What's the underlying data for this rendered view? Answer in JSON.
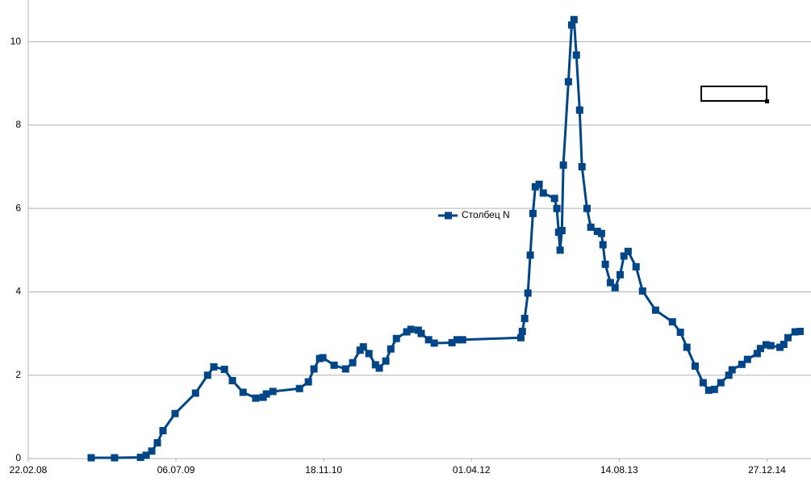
{
  "chart_data": {
    "type": "line",
    "x": [
      "2008-09-22",
      "2008-12-10",
      "2009-03-08",
      "2009-03-27",
      "2009-04-15",
      "2009-05-04",
      "2009-05-23",
      "2009-07-03",
      "2009-09-10",
      "2009-10-21",
      "2009-11-11",
      "2009-12-17",
      "2010-01-13",
      "2010-02-18",
      "2010-04-02",
      "2010-04-27",
      "2010-05-08",
      "2010-05-30",
      "2010-08-28",
      "2010-09-27",
      "2010-10-16",
      "2010-11-04",
      "2010-11-15",
      "2010-12-23",
      "2011-01-31",
      "2011-02-24",
      "2011-03-21",
      "2011-04-01",
      "2011-04-20",
      "2011-05-12",
      "2011-05-25",
      "2011-06-16",
      "2011-07-03",
      "2011-07-22",
      "2011-08-26",
      "2011-09-09",
      "2011-10-04",
      "2011-10-14",
      "2011-11-08",
      "2011-11-27",
      "2012-01-26",
      "2012-02-12",
      "2012-03-02",
      "2012-09-15",
      "2012-09-20",
      "2012-09-28",
      "2012-10-09",
      "2012-10-17",
      "2012-10-26",
      "2012-11-03",
      "2012-11-16",
      "2012-11-30",
      "2013-01-07",
      "2013-01-15",
      "2013-01-21",
      "2013-01-26",
      "2013-02-01",
      "2013-02-06",
      "2013-02-23",
      "2013-03-06",
      "2013-03-14",
      "2013-03-22",
      "2013-04-02",
      "2013-04-10",
      "2013-04-27",
      "2013-05-10",
      "2013-06-01",
      "2013-06-15",
      "2013-06-20",
      "2013-06-28",
      "2013-07-15",
      "2013-07-31",
      "2013-08-17",
      "2013-08-30",
      "2013-09-13",
      "2013-10-10",
      "2013-11-01",
      "2013-12-15",
      "2014-02-10",
      "2014-03-09",
      "2014-03-31",
      "2014-04-28",
      "2014-05-25",
      "2014-06-13",
      "2014-07-02",
      "2014-07-24",
      "2014-08-20",
      "2014-08-31",
      "2014-10-03",
      "2014-10-22",
      "2014-11-24",
      "2014-12-05",
      "2014-12-24",
      "2015-01-09",
      "2015-02-09",
      "2015-02-22",
      "2015-03-08",
      "2015-04-01",
      "2015-04-18"
    ],
    "series": [
      {
        "name": "Столбец N",
        "color": "#004586",
        "values": [
          0.02,
          0.02,
          0.03,
          0.08,
          0.18,
          0.38,
          0.67,
          1.08,
          1.57,
          2.0,
          2.2,
          2.14,
          1.87,
          1.59,
          1.45,
          1.47,
          1.55,
          1.61,
          1.68,
          1.84,
          2.15,
          2.4,
          2.42,
          2.24,
          2.15,
          2.3,
          2.6,
          2.68,
          2.52,
          2.25,
          2.17,
          2.34,
          2.63,
          2.88,
          3.04,
          3.1,
          3.08,
          3.0,
          2.85,
          2.77,
          2.78,
          2.85,
          2.85,
          2.9,
          3.05,
          3.36,
          3.97,
          4.88,
          5.88,
          6.52,
          6.58,
          6.37,
          6.24,
          6.0,
          5.43,
          5.0,
          5.47,
          7.04,
          9.04,
          10.4,
          10.53,
          9.68,
          8.36,
          7.0,
          6.0,
          5.55,
          5.45,
          5.4,
          5.13,
          4.66,
          4.22,
          4.1,
          4.41,
          4.86,
          4.97,
          4.6,
          4.02,
          3.56,
          3.28,
          3.03,
          2.67,
          2.22,
          1.82,
          1.64,
          1.66,
          1.82,
          2.0,
          2.13,
          2.26,
          2.38,
          2.52,
          2.64,
          2.73,
          2.71,
          2.67,
          2.74,
          2.9,
          3.04,
          3.05
        ]
      }
    ],
    "xlim": [
      "2008-02-22",
      "2015-05-25"
    ],
    "xticks": [
      {
        "value": "2008-02-22",
        "label": "22.02.08"
      },
      {
        "value": "2009-07-06",
        "label": "06.07.09"
      },
      {
        "value": "2010-11-18",
        "label": "18.11.10"
      },
      {
        "value": "2012-04-01",
        "label": "01.04.12"
      },
      {
        "value": "2013-08-14",
        "label": "14.08.13"
      },
      {
        "value": "2014-12-27",
        "label": "27.12.14"
      }
    ],
    "ylim": [
      0,
      11
    ],
    "yticks": [
      0,
      2,
      4,
      6,
      8,
      10
    ],
    "grid": true,
    "legend_position": "center"
  }
}
